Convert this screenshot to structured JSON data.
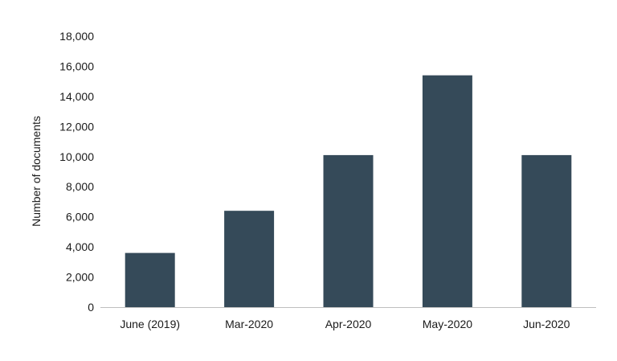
{
  "chart_data": {
    "type": "bar",
    "title": "",
    "xlabel": "",
    "ylabel": "Number of documents",
    "categories": [
      "June (2019)",
      "Mar-2020",
      "Apr-2020",
      "May-2020",
      "Jun-2020"
    ],
    "values": [
      3600,
      6400,
      10100,
      15400,
      10100
    ],
    "ylim": [
      0,
      18000
    ],
    "yticks": [
      0,
      2000,
      4000,
      6000,
      8000,
      10000,
      12000,
      14000,
      16000,
      18000
    ],
    "ytick_labels": [
      "0",
      "2,000",
      "4,000",
      "6,000",
      "8,000",
      "10,000",
      "12,000",
      "14,000",
      "16,000",
      "18,000"
    ],
    "grid": false,
    "legend": "none",
    "bar_color": "#354a59",
    "axis_color": "#bfbfbf"
  }
}
